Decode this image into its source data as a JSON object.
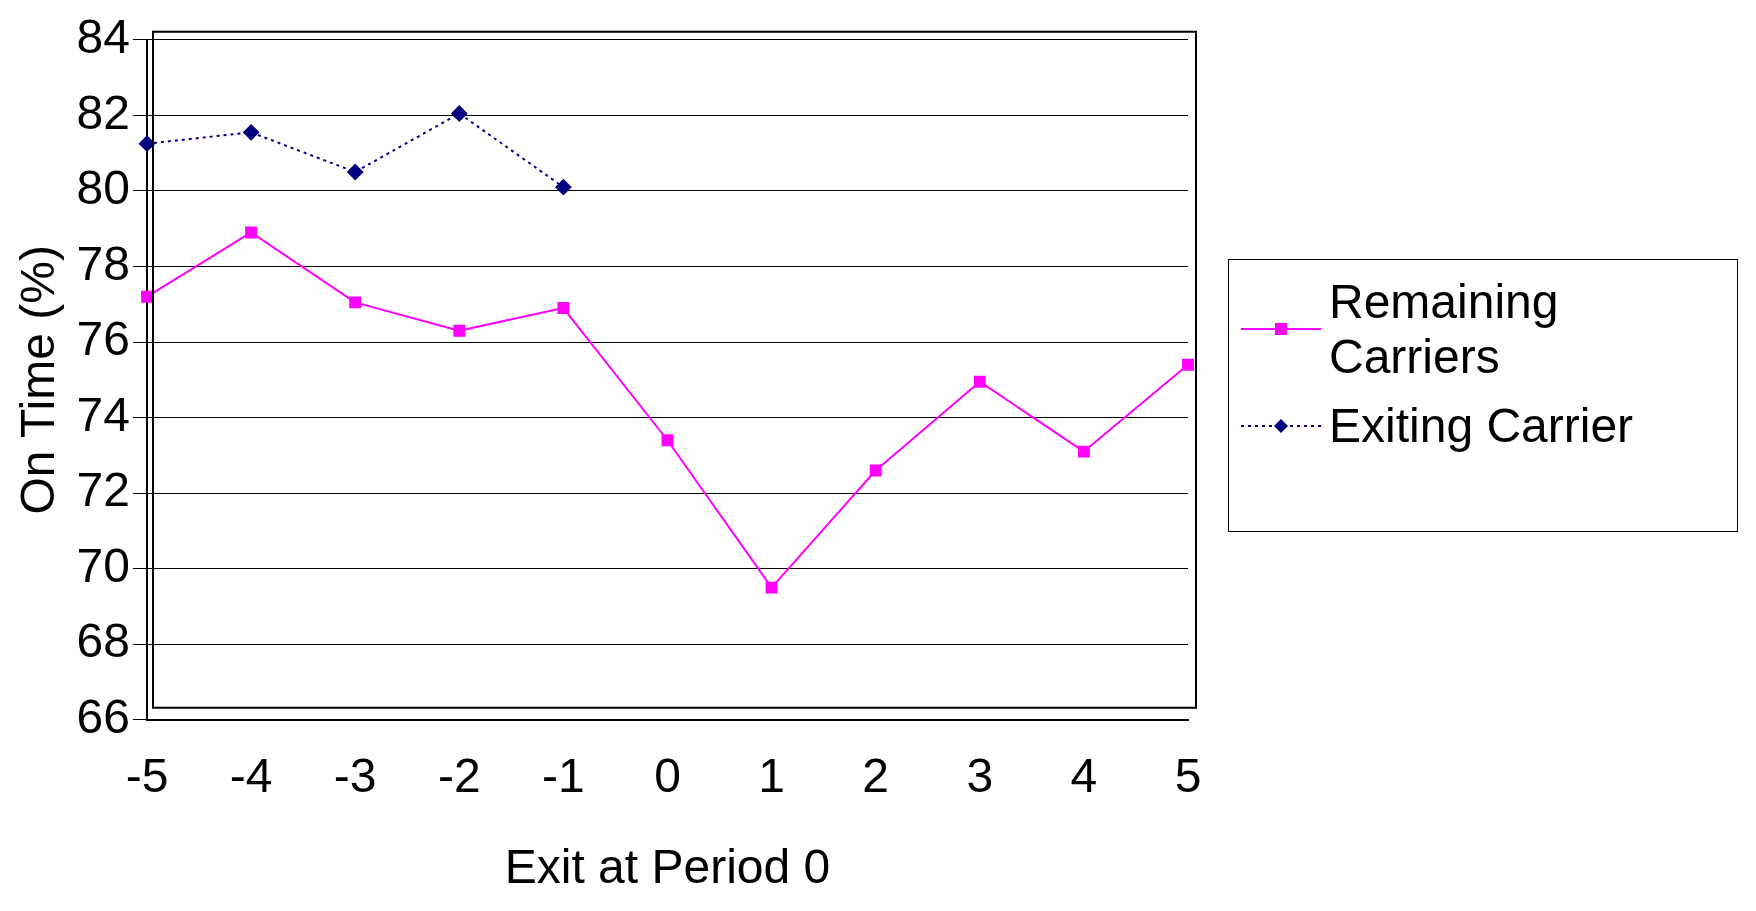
{
  "chart_data": {
    "type": "line",
    "xlabel": "Exit at Period 0",
    "ylabel": "On Time (%)",
    "categories": [
      "-5",
      "-4",
      "-3",
      "-2",
      "-1",
      "0",
      "1",
      "2",
      "3",
      "4",
      "5"
    ],
    "ylim": [
      66,
      84
    ],
    "yticks": [
      66,
      68,
      70,
      72,
      74,
      76,
      78,
      80,
      82,
      84
    ],
    "grid": "y",
    "legend": "right",
    "series": [
      {
        "name": "Remaining Carriers",
        "color": "#ff00ff",
        "marker": "square",
        "line_style": "solid",
        "values": [
          77.2,
          78.9,
          77.05,
          76.3,
          76.9,
          73.4,
          69.5,
          72.6,
          74.95,
          73.1,
          75.4
        ]
      },
      {
        "name": "Exiting Carrier",
        "color": "#000080",
        "marker": "diamond",
        "line_style": "dotted",
        "values": [
          81.25,
          81.55,
          80.5,
          82.05,
          80.1,
          null,
          null,
          null,
          null,
          null,
          null
        ]
      }
    ]
  }
}
